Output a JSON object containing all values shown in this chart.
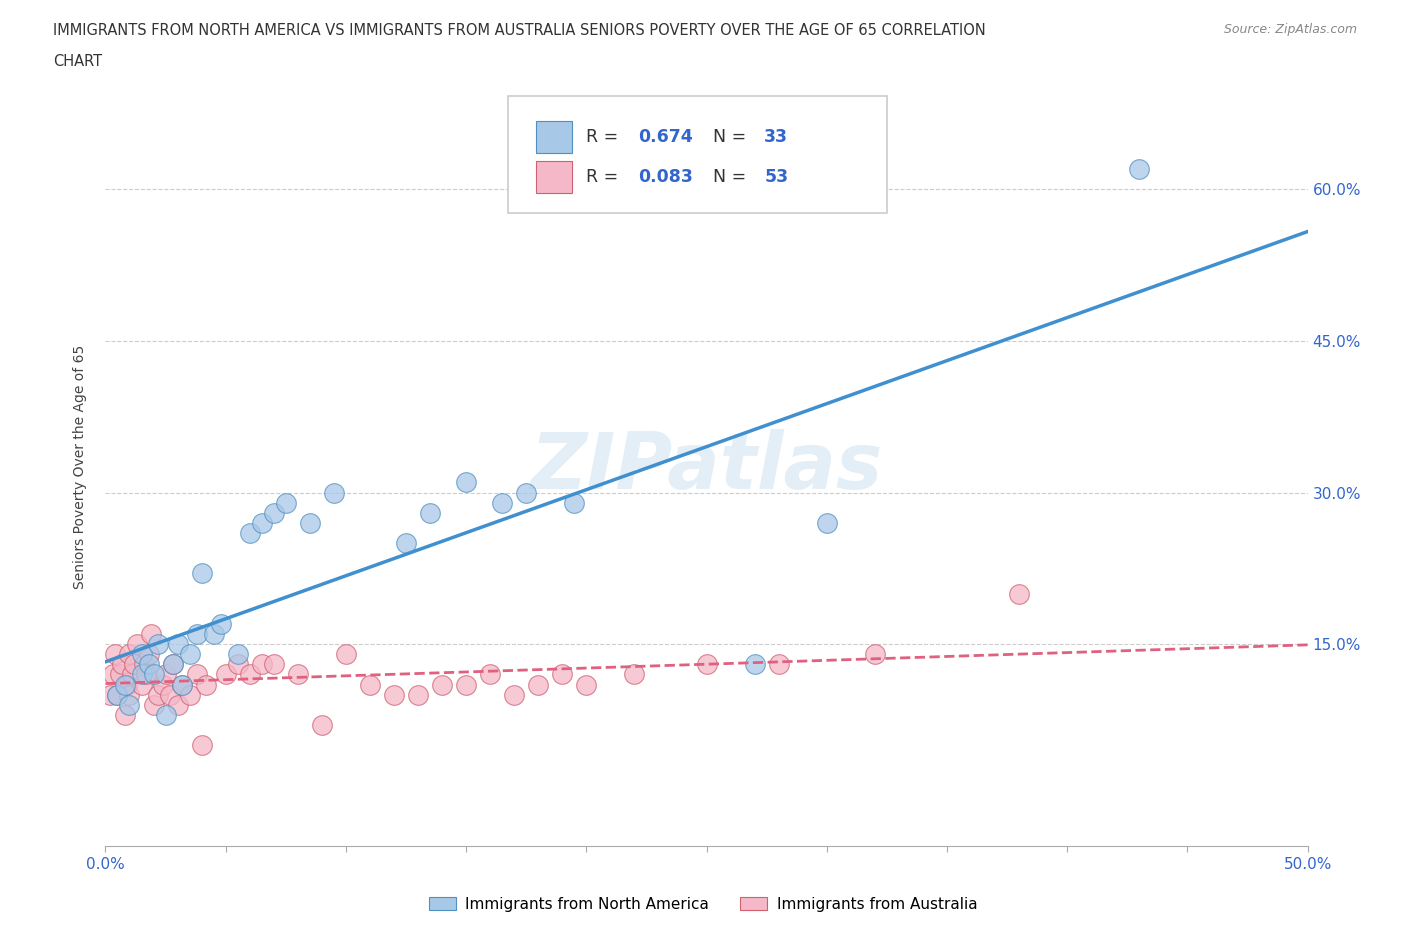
{
  "title_line1": "IMMIGRANTS FROM NORTH AMERICA VS IMMIGRANTS FROM AUSTRALIA SENIORS POVERTY OVER THE AGE OF 65 CORRELATION",
  "title_line2": "CHART",
  "source_text": "Source: ZipAtlas.com",
  "ylabel": "Seniors Poverty Over the Age of 65",
  "xlim": [
    0.0,
    0.5
  ],
  "ylim": [
    -0.05,
    0.7
  ],
  "ytick_positions": [
    0.15,
    0.3,
    0.45,
    0.6
  ],
  "ytick_labels": [
    "15.0%",
    "30.0%",
    "45.0%",
    "60.0%"
  ],
  "color_blue": "#a8c8e8",
  "color_pink": "#f4b8c8",
  "color_blue_line": "#4090d0",
  "color_pink_line": "#e06080",
  "watermark": "ZIPatlas",
  "north_america_x": [
    0.005,
    0.008,
    0.01,
    0.015,
    0.015,
    0.018,
    0.02,
    0.022,
    0.025,
    0.028,
    0.03,
    0.032,
    0.035,
    0.038,
    0.04,
    0.045,
    0.048,
    0.055,
    0.06,
    0.065,
    0.07,
    0.075,
    0.085,
    0.095,
    0.125,
    0.135,
    0.15,
    0.165,
    0.175,
    0.195,
    0.27,
    0.3,
    0.43
  ],
  "north_america_y": [
    0.1,
    0.11,
    0.09,
    0.12,
    0.14,
    0.13,
    0.12,
    0.15,
    0.08,
    0.13,
    0.15,
    0.11,
    0.14,
    0.16,
    0.22,
    0.16,
    0.17,
    0.14,
    0.26,
    0.27,
    0.28,
    0.29,
    0.27,
    0.3,
    0.25,
    0.28,
    0.31,
    0.29,
    0.3,
    0.29,
    0.13,
    0.27,
    0.62
  ],
  "australia_x": [
    0.002,
    0.003,
    0.004,
    0.005,
    0.006,
    0.007,
    0.008,
    0.009,
    0.01,
    0.01,
    0.011,
    0.012,
    0.013,
    0.015,
    0.016,
    0.017,
    0.018,
    0.019,
    0.02,
    0.022,
    0.024,
    0.025,
    0.027,
    0.028,
    0.03,
    0.032,
    0.035,
    0.038,
    0.04,
    0.042,
    0.05,
    0.055,
    0.06,
    0.065,
    0.07,
    0.08,
    0.09,
    0.1,
    0.11,
    0.12,
    0.13,
    0.14,
    0.15,
    0.16,
    0.17,
    0.18,
    0.19,
    0.2,
    0.22,
    0.25,
    0.28,
    0.32,
    0.38
  ],
  "australia_y": [
    0.1,
    0.12,
    0.14,
    0.1,
    0.12,
    0.13,
    0.08,
    0.11,
    0.1,
    0.14,
    0.12,
    0.13,
    0.15,
    0.11,
    0.13,
    0.12,
    0.14,
    0.16,
    0.09,
    0.1,
    0.11,
    0.12,
    0.1,
    0.13,
    0.09,
    0.11,
    0.1,
    0.12,
    0.05,
    0.11,
    0.12,
    0.13,
    0.12,
    0.13,
    0.13,
    0.12,
    0.07,
    0.14,
    0.11,
    0.1,
    0.1,
    0.11,
    0.11,
    0.12,
    0.1,
    0.11,
    0.12,
    0.11,
    0.12,
    0.13,
    0.13,
    0.14,
    0.2
  ]
}
